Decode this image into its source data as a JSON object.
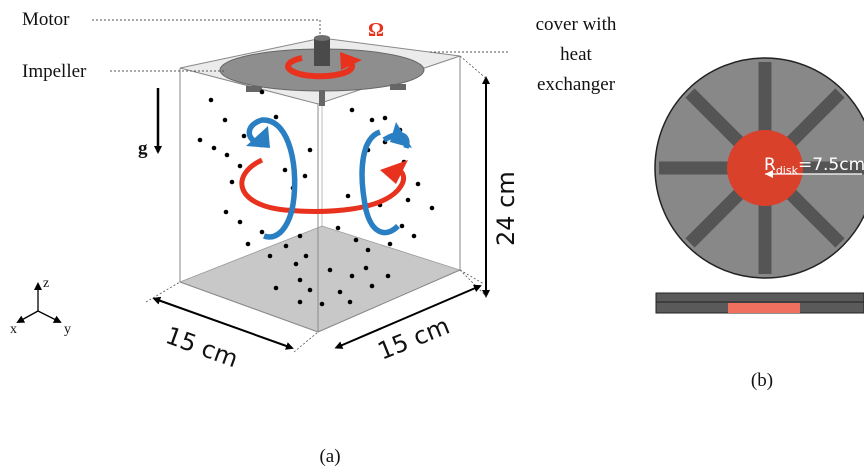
{
  "panel_a": {
    "labels": {
      "motor": "Motor",
      "impeller": "Impeller",
      "omega": "Ω",
      "cover_line1": "cover with",
      "cover_line2": "heat",
      "cover_line3": "exchanger",
      "gravity": "g",
      "height": "24 cm",
      "width_left": "15 cm",
      "width_right": "15 cm",
      "axis_z": "z",
      "axis_x": "x",
      "axis_y": "y"
    },
    "caption": "(a)"
  },
  "panel_b": {
    "radius_symbol": "R",
    "radius_subscript": "disk",
    "radius_value": "=7.5cm",
    "caption": "(b)"
  },
  "colors": {
    "flow_red": "#e8321e",
    "flow_blue": "#2a7fc2",
    "disk_gray": "#888888",
    "blade_dark": "#555555",
    "disk_red": "#d9412b",
    "side_red": "#f07060",
    "omega_red": "#e8321e"
  }
}
